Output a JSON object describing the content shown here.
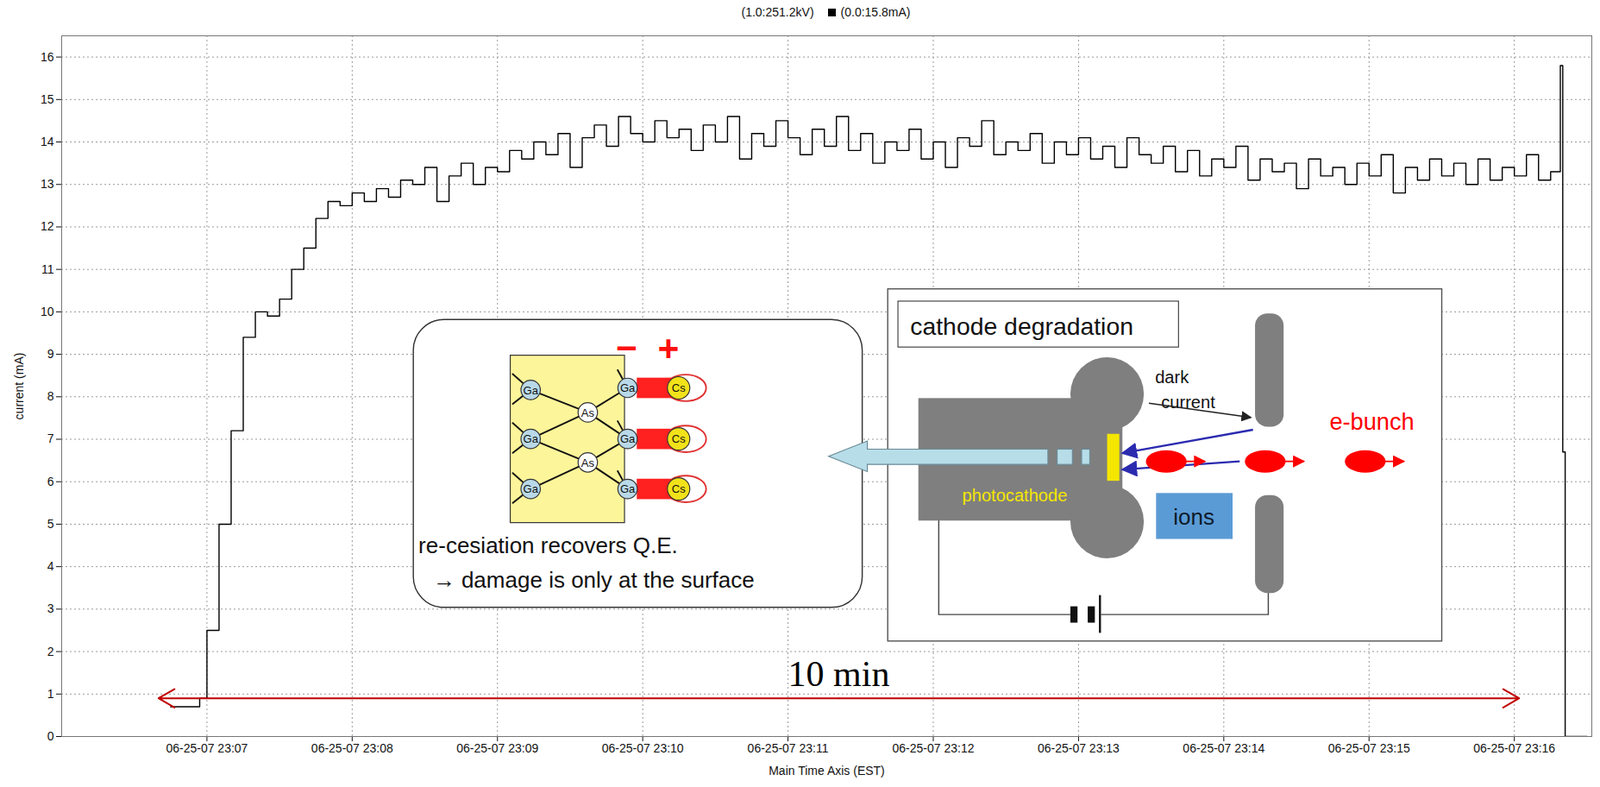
{
  "chart_data": {
    "type": "line",
    "legend_texts": [
      "(1.0:251.2kV)",
      "(0.0:15.8mA)"
    ],
    "x_label": "Main Time Axis (EST)",
    "y_label": "current (mA)",
    "color": "#000000",
    "line_style": "step",
    "grid": true,
    "xlim": [
      "2007-06-25T23:06:00",
      "2007-06-25T23:16:32"
    ],
    "xticks": [
      {
        "value": "2007-06-25T23:07:00",
        "label": "06-25-07 23:07"
      },
      {
        "value": "2007-06-25T23:08:00",
        "label": "06-25-07 23:08"
      },
      {
        "value": "2007-06-25T23:09:00",
        "label": "06-25-07 23:09"
      },
      {
        "value": "2007-06-25T23:10:00",
        "label": "06-25-07 23:10"
      },
      {
        "value": "2007-06-25T23:11:00",
        "label": "06-25-07 23:11"
      },
      {
        "value": "2007-06-25T23:12:00",
        "label": "06-25-07 23:12"
      },
      {
        "value": "2007-06-25T23:13:00",
        "label": "06-25-07 23:13"
      },
      {
        "value": "2007-06-25T23:14:00",
        "label": "06-25-07 23:14"
      },
      {
        "value": "2007-06-25T23:15:00",
        "label": "06-25-07 23:15"
      },
      {
        "value": "2007-06-25T23:16:00",
        "label": "06-25-07 23:16"
      }
    ],
    "ylim": [
      0,
      16.5
    ],
    "yticks": [
      0,
      1,
      2,
      3,
      4,
      5,
      6,
      7,
      8,
      9,
      10,
      11,
      12,
      13,
      14,
      15,
      16
    ],
    "x": [
      "2007-06-25T23:06:45",
      "2007-06-25T23:06:50",
      "2007-06-25T23:06:55",
      "2007-06-25T23:06:57",
      "2007-06-25T23:07:00",
      "2007-06-25T23:07:05",
      "2007-06-25T23:07:10",
      "2007-06-25T23:07:15",
      "2007-06-25T23:07:20",
      "2007-06-25T23:07:25",
      "2007-06-25T23:07:30",
      "2007-06-25T23:07:35",
      "2007-06-25T23:07:40",
      "2007-06-25T23:07:45",
      "2007-06-25T23:07:50",
      "2007-06-25T23:07:55",
      "2007-06-25T23:08:00",
      "2007-06-25T23:08:05",
      "2007-06-25T23:08:10",
      "2007-06-25T23:08:15",
      "2007-06-25T23:08:20",
      "2007-06-25T23:08:25",
      "2007-06-25T23:08:30",
      "2007-06-25T23:08:35",
      "2007-06-25T23:08:40",
      "2007-06-25T23:08:45",
      "2007-06-25T23:08:50",
      "2007-06-25T23:08:55",
      "2007-06-25T23:09:00",
      "2007-06-25T23:09:05",
      "2007-06-25T23:09:10",
      "2007-06-25T23:09:15",
      "2007-06-25T23:09:20",
      "2007-06-25T23:09:25",
      "2007-06-25T23:09:30",
      "2007-06-25T23:09:35",
      "2007-06-25T23:09:40",
      "2007-06-25T23:09:45",
      "2007-06-25T23:09:50",
      "2007-06-25T23:09:55",
      "2007-06-25T23:10:00",
      "2007-06-25T23:10:05",
      "2007-06-25T23:10:10",
      "2007-06-25T23:10:15",
      "2007-06-25T23:10:20",
      "2007-06-25T23:10:25",
      "2007-06-25T23:10:30",
      "2007-06-25T23:10:35",
      "2007-06-25T23:10:40",
      "2007-06-25T23:10:45",
      "2007-06-25T23:10:50",
      "2007-06-25T23:10:55",
      "2007-06-25T23:11:00",
      "2007-06-25T23:11:05",
      "2007-06-25T23:11:10",
      "2007-06-25T23:11:15",
      "2007-06-25T23:11:20",
      "2007-06-25T23:11:25",
      "2007-06-25T23:11:30",
      "2007-06-25T23:11:35",
      "2007-06-25T23:11:40",
      "2007-06-25T23:11:45",
      "2007-06-25T23:11:50",
      "2007-06-25T23:11:55",
      "2007-06-25T23:12:00",
      "2007-06-25T23:12:05",
      "2007-06-25T23:12:10",
      "2007-06-25T23:12:15",
      "2007-06-25T23:12:20",
      "2007-06-25T23:12:25",
      "2007-06-25T23:12:30",
      "2007-06-25T23:12:35",
      "2007-06-25T23:12:40",
      "2007-06-25T23:12:45",
      "2007-06-25T23:12:50",
      "2007-06-25T23:12:55",
      "2007-06-25T23:13:00",
      "2007-06-25T23:13:05",
      "2007-06-25T23:13:10",
      "2007-06-25T23:13:15",
      "2007-06-25T23:13:20",
      "2007-06-25T23:13:25",
      "2007-06-25T23:13:30",
      "2007-06-25T23:13:35",
      "2007-06-25T23:13:40",
      "2007-06-25T23:13:45",
      "2007-06-25T23:13:50",
      "2007-06-25T23:13:55",
      "2007-06-25T23:14:00",
      "2007-06-25T23:14:05",
      "2007-06-25T23:14:10",
      "2007-06-25T23:14:15",
      "2007-06-25T23:14:20",
      "2007-06-25T23:14:25",
      "2007-06-25T23:14:30",
      "2007-06-25T23:14:35",
      "2007-06-25T23:14:40",
      "2007-06-25T23:14:45",
      "2007-06-25T23:14:50",
      "2007-06-25T23:14:55",
      "2007-06-25T23:15:00",
      "2007-06-25T23:15:05",
      "2007-06-25T23:15:10",
      "2007-06-25T23:15:15",
      "2007-06-25T23:15:20",
      "2007-06-25T23:15:25",
      "2007-06-25T23:15:30",
      "2007-06-25T23:15:35",
      "2007-06-25T23:15:40",
      "2007-06-25T23:15:45",
      "2007-06-25T23:15:50",
      "2007-06-25T23:15:55",
      "2007-06-25T23:16:00",
      "2007-06-25T23:16:05",
      "2007-06-25T23:16:10",
      "2007-06-25T23:16:15",
      "2007-06-25T23:16:19",
      "2007-06-25T23:16:20",
      "2007-06-25T23:16:21",
      "2007-06-25T23:16:30"
    ],
    "values": [
      0.7,
      0.7,
      0.7,
      0.9,
      2.5,
      5.0,
      7.2,
      9.4,
      10.0,
      9.9,
      10.3,
      11.0,
      11.5,
      12.2,
      12.6,
      12.5,
      12.8,
      12.6,
      12.9,
      12.7,
      13.1,
      13.0,
      13.4,
      12.6,
      13.2,
      13.5,
      13.0,
      13.4,
      13.3,
      13.8,
      13.6,
      14.0,
      13.7,
      14.2,
      13.4,
      14.1,
      14.4,
      13.9,
      14.6,
      14.2,
      14.0,
      14.5,
      14.1,
      14.3,
      13.8,
      14.4,
      14.0,
      14.6,
      13.6,
      14.2,
      13.9,
      14.5,
      14.1,
      13.7,
      14.3,
      13.9,
      14.6,
      13.8,
      14.2,
      13.5,
      14.0,
      13.8,
      14.3,
      13.6,
      14.0,
      13.4,
      14.1,
      13.9,
      14.5,
      13.7,
      14.0,
      13.8,
      14.2,
      13.5,
      14.0,
      13.7,
      14.1,
      13.6,
      13.9,
      13.4,
      14.1,
      13.7,
      13.5,
      13.9,
      13.3,
      13.8,
      13.2,
      13.6,
      13.4,
      13.9,
      13.1,
      13.6,
      13.3,
      13.5,
      12.9,
      13.6,
      13.2,
      13.4,
      13.0,
      13.5,
      13.2,
      13.7,
      12.8,
      13.4,
      13.1,
      13.6,
      13.2,
      13.5,
      13.0,
      13.6,
      13.1,
      13.4,
      13.2,
      13.7,
      13.1,
      13.3,
      15.8,
      6.7,
      0.0,
      0.0
    ],
    "annotations": [
      {
        "text": "10 min",
        "x_start": "2007-06-25T23:06:40",
        "x_end": "2007-06-25T23:16:02",
        "y": 0.9,
        "color": "#c00000"
      }
    ],
    "insets": {
      "surface": {
        "atoms": {
          "gallium": "Ga",
          "arsenic": "As",
          "cesium": "Cs"
        },
        "charges": [
          "−",
          "+"
        ],
        "lines": [
          "re-cesiation recovers Q.E.",
          "→ damage is only at the surface"
        ]
      },
      "gun": {
        "title": "cathode degradation",
        "dark_current": "dark current",
        "photocathode": "photocathode",
        "ions": "ions",
        "bunch": "e-bunch"
      }
    }
  }
}
